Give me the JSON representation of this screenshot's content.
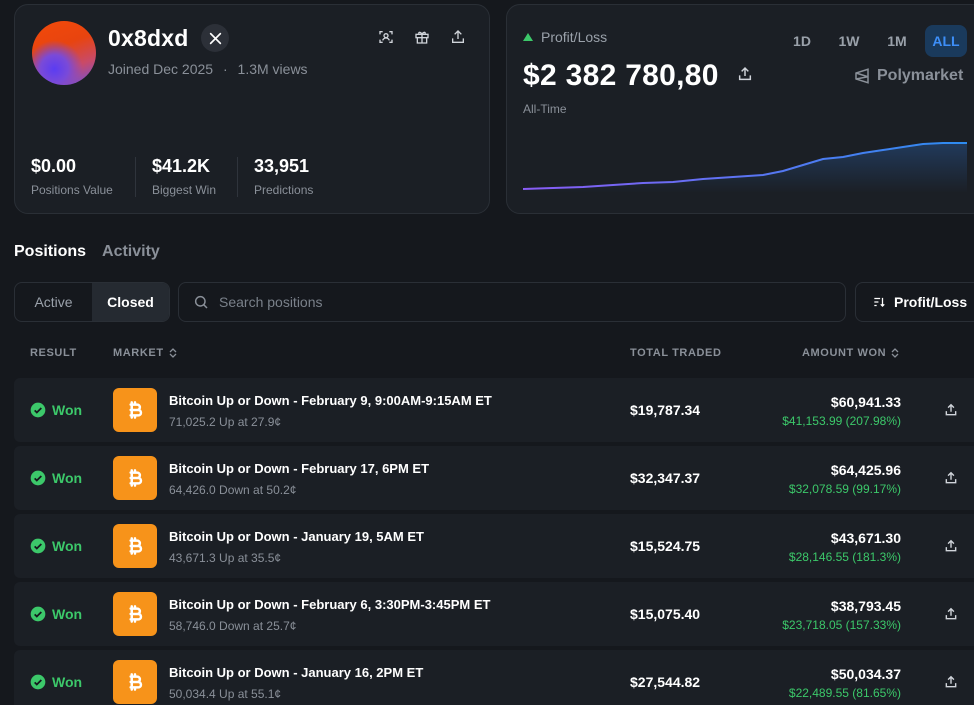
{
  "profile": {
    "username": "0x8dxd",
    "joined": "Joined Dec 2025",
    "separator": "·",
    "views": "1.3M views",
    "stats": [
      {
        "value": "$0.00",
        "label": "Positions Value"
      },
      {
        "value": "$41.2K",
        "label": "Biggest Win"
      },
      {
        "value": "33,951",
        "label": "Predictions"
      }
    ]
  },
  "pnl": {
    "label": "Profit/Loss",
    "value": "$2 382 780,80",
    "period": "All-Time",
    "ranges": [
      "1D",
      "1W",
      "1M",
      "ALL"
    ],
    "active_range": "ALL",
    "brand": "Polymarket",
    "colors": {
      "up": "#3cc86a",
      "line_start": "#8a5cf6",
      "line_end": "#2d8cf0"
    }
  },
  "tabs": {
    "positions": "Positions",
    "activity": "Activity"
  },
  "filter": {
    "active": "Active",
    "closed": "Closed"
  },
  "search": {
    "placeholder": "Search positions"
  },
  "sort": {
    "label": "Profit/Loss"
  },
  "table": {
    "headers": {
      "result": "RESULT",
      "market": "MARKET",
      "traded": "TOTAL TRADED",
      "won": "AMOUNT WON"
    },
    "rows": [
      {
        "result": "Won",
        "title": "Bitcoin Up or Down - February 9, 9:00AM-9:15AM ET",
        "sub": "71,025.2 Up at 27.9¢",
        "traded": "$19,787.34",
        "amount": "$60,941.33",
        "gain": "$41,153.99 (207.98%)"
      },
      {
        "result": "Won",
        "title": "Bitcoin Up or Down - February 17, 6PM ET",
        "sub": "64,426.0 Down at 50.2¢",
        "traded": "$32,347.37",
        "amount": "$64,425.96",
        "gain": "$32,078.59 (99.17%)"
      },
      {
        "result": "Won",
        "title": "Bitcoin Up or Down - January 19, 5AM ET",
        "sub": "43,671.3 Up at 35.5¢",
        "traded": "$15,524.75",
        "amount": "$43,671.30",
        "gain": "$28,146.55 (181.3%)"
      },
      {
        "result": "Won",
        "title": "Bitcoin Up or Down - February 6, 3:30PM-3:45PM ET",
        "sub": "58,746.0 Down at 25.7¢",
        "traded": "$15,075.40",
        "amount": "$38,793.45",
        "gain": "$23,718.05 (157.33%)"
      },
      {
        "result": "Won",
        "title": "Bitcoin Up or Down - January 16, 2PM ET",
        "sub": "50,034.4 Up at 55.1¢",
        "traded": "$27,544.82",
        "amount": "$50,034.37",
        "gain": "$22,489.55 (81.65%)"
      }
    ]
  }
}
